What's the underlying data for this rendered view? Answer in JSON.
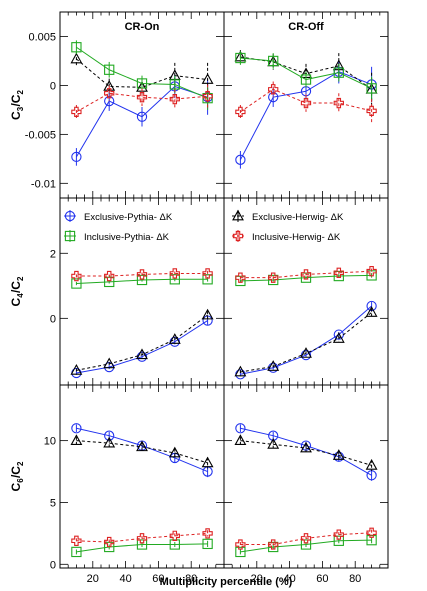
{
  "figure": {
    "xlabel": "Multiplicity percentile (%)",
    "x_ticks": [
      "20",
      "40",
      "60",
      "80"
    ],
    "columns": [
      "CR-On",
      "CR-Off"
    ]
  },
  "legend": [
    {
      "label": "Exclusive-Pythia- ΔK",
      "color": "#2233ee",
      "marker": "circle",
      "dash": false
    },
    {
      "label": "Exclusive-Herwig- ΔK",
      "color": "#000000",
      "marker": "triangle",
      "dash": true
    },
    {
      "label": "Inclusive-Pythia- ΔK",
      "color": "#22aa22",
      "marker": "square",
      "dash": false
    },
    {
      "label": "Inclusive-Herwig- ΔK",
      "color": "#dd2222",
      "marker": "cross",
      "dash": true
    }
  ],
  "rows": [
    {
      "ylabel_main": "C",
      "ylabel_sub": "3",
      "ylabel_den_main": "C",
      "ylabel_den_sub": "2",
      "yrange": [
        -0.0115,
        0.0075
      ],
      "ticks": [
        {
          "v": 0.005,
          "label": "0.005"
        },
        {
          "v": 0,
          "label": "0"
        },
        {
          "v": -0.005,
          "label": "-0.005"
        },
        {
          "v": -0.01,
          "label": "-0.01"
        }
      ]
    },
    {
      "ylabel_main": "C",
      "ylabel_sub": "4",
      "ylabel_den_main": "C",
      "ylabel_den_sub": "2",
      "yrange": [
        -2.05,
        3.7
      ],
      "ticks": [
        {
          "v": 2,
          "label": "2"
        },
        {
          "v": 0,
          "label": "0"
        }
      ]
    },
    {
      "ylabel_main": "C",
      "ylabel_sub": "6",
      "ylabel_den_main": "C",
      "ylabel_den_sub": "2",
      "yrange": [
        -0.3,
        14.5
      ],
      "ticks": [
        {
          "v": 10,
          "label": "10"
        },
        {
          "v": 5,
          "label": "5"
        },
        {
          "v": 0,
          "label": "0"
        }
      ]
    }
  ],
  "chart_data": [
    {
      "type": "line",
      "title": "CR-On",
      "ylabel": "C3/C2",
      "xlabel": "",
      "xlim": [
        0,
        100
      ],
      "ylim": [
        -0.0115,
        0.0075
      ],
      "x": [
        10,
        30,
        50,
        70,
        90
      ],
      "series": [
        {
          "name": "Exclusive-Pythia- ΔK",
          "values": [
            -0.0073,
            -0.0016,
            -0.0032,
            -0.0001,
            -0.0012
          ],
          "errors": [
            0.0009,
            0.001,
            0.001,
            0.0012,
            0.0018
          ]
        },
        {
          "name": "Exclusive-Herwig- ΔK",
          "values": [
            0.0027,
            -0.0001,
            -0.0002,
            0.001,
            0.0006
          ],
          "errors": [
            0.0007,
            0.0008,
            0.001,
            0.0013,
            0.0017
          ]
        },
        {
          "name": "Inclusive-Pythia- ΔK",
          "values": [
            0.0039,
            0.0016,
            0.0002,
            0.0001,
            -0.0013
          ],
          "errors": [
            0.0007,
            0.0008,
            0.0008,
            0.0009,
            0.0012
          ]
        },
        {
          "name": "Inclusive-Herwig- ΔK",
          "values": [
            -0.0027,
            -0.0008,
            -0.0012,
            -0.0014,
            -0.0011
          ],
          "errors": [
            0.0007,
            0.0008,
            0.0009,
            0.001,
            0.0012
          ]
        }
      ]
    },
    {
      "type": "line",
      "title": "CR-Off",
      "ylabel": "C3/C2",
      "xlabel": "",
      "xlim": [
        0,
        100
      ],
      "ylim": [
        -0.0115,
        0.0075
      ],
      "x": [
        10,
        30,
        50,
        70,
        90
      ],
      "series": [
        {
          "name": "Exclusive-Pythia- ΔK",
          "values": [
            -0.0076,
            -0.0012,
            -0.0006,
            0.0014,
            0.0001
          ],
          "errors": [
            0.0009,
            0.001,
            0.001,
            0.0012,
            0.0018
          ]
        },
        {
          "name": "Exclusive-Herwig- ΔK",
          "values": [
            0.0029,
            0.0024,
            0.0012,
            0.002,
            -0.0004
          ],
          "errors": [
            0.0007,
            0.0008,
            0.001,
            0.0013,
            0.0017
          ]
        },
        {
          "name": "Inclusive-Pythia- ΔK",
          "values": [
            0.0028,
            0.0025,
            0.0006,
            0.0013,
            -0.0003
          ],
          "errors": [
            0.0007,
            0.0008,
            0.0008,
            0.0009,
            0.0012
          ]
        },
        {
          "name": "Inclusive-Herwig- ΔK",
          "values": [
            -0.0027,
            -0.0004,
            -0.0018,
            -0.0018,
            -0.0026
          ],
          "errors": [
            0.0007,
            0.0008,
            0.0009,
            0.001,
            0.0012
          ]
        }
      ]
    },
    {
      "type": "line",
      "title": "",
      "ylabel": "C4/C2",
      "xlabel": "",
      "xlim": [
        0,
        100
      ],
      "ylim": [
        -2.05,
        3.7
      ],
      "x": [
        10,
        30,
        50,
        70,
        90
      ],
      "series": [
        {
          "name": "Exclusive-Pythia- ΔK",
          "values": [
            -1.68,
            -1.5,
            -1.18,
            -0.72,
            -0.07
          ],
          "errors": [
            0.06,
            0.06,
            0.07,
            0.08,
            0.12
          ]
        },
        {
          "name": "Exclusive-Herwig- ΔK",
          "values": [
            -1.6,
            -1.4,
            -1.12,
            -0.65,
            0.1
          ],
          "errors": [
            0.06,
            0.06,
            0.07,
            0.08,
            0.12
          ]
        },
        {
          "name": "Inclusive-Pythia- ΔK",
          "values": [
            1.07,
            1.12,
            1.18,
            1.2,
            1.2
          ],
          "errors": [
            0.05,
            0.05,
            0.05,
            0.06,
            0.07
          ]
        },
        {
          "name": "Inclusive-Herwig- ΔK",
          "values": [
            1.3,
            1.3,
            1.35,
            1.38,
            1.38
          ],
          "errors": [
            0.05,
            0.05,
            0.06,
            0.06,
            0.08
          ]
        }
      ]
    },
    {
      "type": "line",
      "title": "",
      "ylabel": "C4/C2",
      "xlabel": "",
      "xlim": [
        0,
        100
      ],
      "ylim": [
        -2.05,
        3.7
      ],
      "x": [
        10,
        30,
        50,
        70,
        90
      ],
      "series": [
        {
          "name": "Exclusive-Pythia- ΔK",
          "values": [
            -1.72,
            -1.52,
            -1.13,
            -0.5,
            0.38
          ],
          "errors": [
            0.06,
            0.06,
            0.07,
            0.08,
            0.12
          ]
        },
        {
          "name": "Exclusive-Herwig- ΔK",
          "values": [
            -1.65,
            -1.48,
            -1.08,
            -0.62,
            0.18
          ],
          "errors": [
            0.06,
            0.06,
            0.07,
            0.08,
            0.12
          ]
        },
        {
          "name": "Inclusive-Pythia- ΔK",
          "values": [
            1.15,
            1.18,
            1.25,
            1.3,
            1.32
          ],
          "errors": [
            0.05,
            0.05,
            0.05,
            0.06,
            0.07
          ]
        },
        {
          "name": "Inclusive-Herwig- ΔK",
          "values": [
            1.25,
            1.25,
            1.35,
            1.4,
            1.45
          ],
          "errors": [
            0.05,
            0.05,
            0.06,
            0.06,
            0.08
          ]
        }
      ]
    },
    {
      "type": "line",
      "title": "",
      "ylabel": "C6/C2",
      "xlabel": "Multiplicity percentile (%)",
      "xlim": [
        0,
        100
      ],
      "ylim": [
        -0.3,
        14.5
      ],
      "x": [
        10,
        30,
        50,
        70,
        90
      ],
      "series": [
        {
          "name": "Exclusive-Pythia- ΔK",
          "values": [
            11.0,
            10.4,
            9.6,
            8.6,
            7.5
          ],
          "errors": [
            0.3,
            0.3,
            0.3,
            0.35,
            0.45
          ]
        },
        {
          "name": "Exclusive-Herwig- ΔK",
          "values": [
            10.0,
            9.8,
            9.5,
            9.0,
            8.2
          ],
          "errors": [
            0.3,
            0.3,
            0.3,
            0.35,
            0.45
          ]
        },
        {
          "name": "Inclusive-Pythia- ΔK",
          "values": [
            1.0,
            1.4,
            1.6,
            1.6,
            1.65
          ],
          "errors": [
            0.2,
            0.2,
            0.2,
            0.2,
            0.25
          ]
        },
        {
          "name": "Inclusive-Herwig- ΔK",
          "values": [
            1.9,
            1.8,
            2.1,
            2.3,
            2.5
          ],
          "errors": [
            0.2,
            0.2,
            0.2,
            0.2,
            0.25
          ]
        }
      ]
    },
    {
      "type": "line",
      "title": "",
      "ylabel": "C6/C2",
      "xlabel": "Multiplicity percentile (%)",
      "xlim": [
        0,
        100
      ],
      "ylim": [
        -0.3,
        14.5
      ],
      "x": [
        10,
        30,
        50,
        70,
        90
      ],
      "series": [
        {
          "name": "Exclusive-Pythia- ΔK",
          "values": [
            11.0,
            10.4,
            9.6,
            8.7,
            7.2
          ],
          "errors": [
            0.3,
            0.3,
            0.3,
            0.35,
            0.45
          ]
        },
        {
          "name": "Exclusive-Herwig- ΔK",
          "values": [
            10.0,
            9.7,
            9.4,
            8.8,
            8.0
          ],
          "errors": [
            0.3,
            0.3,
            0.3,
            0.35,
            0.45
          ]
        },
        {
          "name": "Inclusive-Pythia- ΔK",
          "values": [
            1.0,
            1.4,
            1.6,
            1.9,
            1.95
          ],
          "errors": [
            0.2,
            0.2,
            0.2,
            0.2,
            0.25
          ]
        },
        {
          "name": "Inclusive-Herwig- ΔK",
          "values": [
            1.6,
            1.6,
            2.1,
            2.4,
            2.55
          ],
          "errors": [
            0.2,
            0.2,
            0.2,
            0.2,
            0.25
          ]
        }
      ]
    }
  ]
}
